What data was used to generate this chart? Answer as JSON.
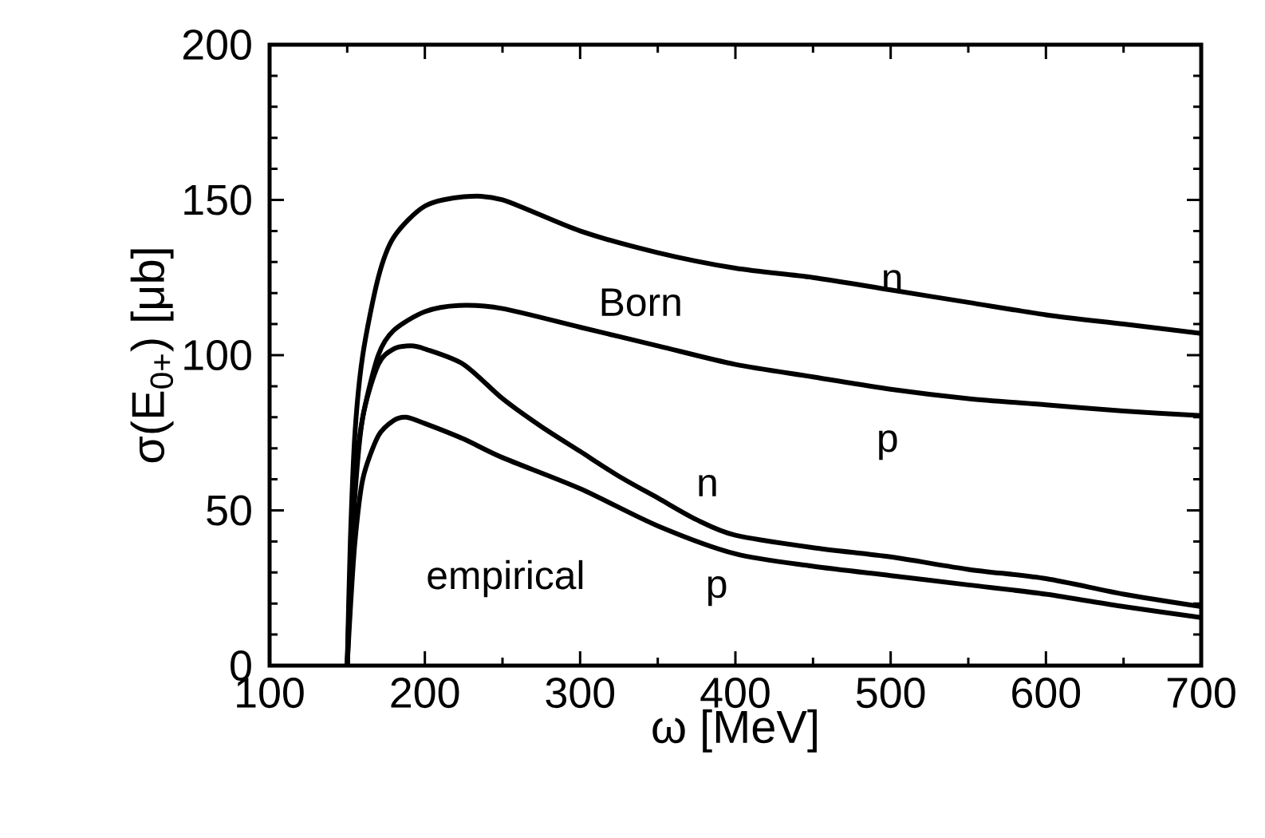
{
  "chart_data": {
    "type": "line",
    "xlabel": "ω [MeV]",
    "ylabel": "σ(E$_{0+}$) [μb]",
    "xlim": [
      100,
      700
    ],
    "ylim": [
      0,
      200
    ],
    "xticks": [
      100,
      200,
      300,
      400,
      500,
      600,
      700
    ],
    "yticks": [
      0,
      50,
      100,
      150,
      200
    ],
    "grid": false,
    "marker": "none",
    "line_style": "solid",
    "series": [
      {
        "color": "#000000",
        "x": [
          150,
          152,
          155,
          160,
          170,
          180,
          200,
          225,
          250,
          300,
          350,
          400,
          450,
          500,
          550,
          600,
          650,
          700
        ],
        "values": [
          0,
          40,
          75,
          100,
          125,
          138,
          148,
          151,
          150,
          140,
          133,
          128,
          125,
          121,
          117,
          113,
          110,
          107
        ]
      },
      {
        "color": "#000000",
        "x": [
          150,
          152,
          155,
          160,
          170,
          180,
          200,
          222,
          250,
          300,
          350,
          400,
          450,
          500,
          550,
          600,
          650,
          700
        ],
        "values": [
          0,
          30,
          60,
          80,
          100,
          108,
          114,
          116,
          115,
          109,
          103,
          97,
          93,
          89,
          86,
          84,
          82,
          80.5
        ]
      },
      {
        "color": "#000000",
        "x": [
          150,
          152,
          155,
          160,
          170,
          180,
          191,
          200,
          225,
          250,
          275,
          300,
          325,
          350,
          375,
          400,
          450,
          500,
          550,
          600,
          650,
          700
        ],
        "values": [
          0,
          25,
          55,
          80,
          97,
          102,
          103,
          102,
          97,
          86,
          77,
          69,
          61,
          54,
          47,
          42,
          38,
          35,
          31,
          28,
          23,
          19
        ]
      },
      {
        "color": "#000000",
        "x": [
          150,
          152,
          155,
          160,
          170,
          180,
          188,
          200,
          225,
          250,
          300,
          350,
          400,
          450,
          500,
          550,
          600,
          650,
          700
        ],
        "values": [
          0,
          18,
          40,
          60,
          74,
          79,
          80,
          78,
          73,
          67,
          57,
          45,
          36,
          32,
          29,
          26,
          23,
          19,
          15.5
        ]
      }
    ],
    "annotations": [
      "Born",
      "n",
      "p",
      "n",
      "p",
      "empirical"
    ]
  }
}
